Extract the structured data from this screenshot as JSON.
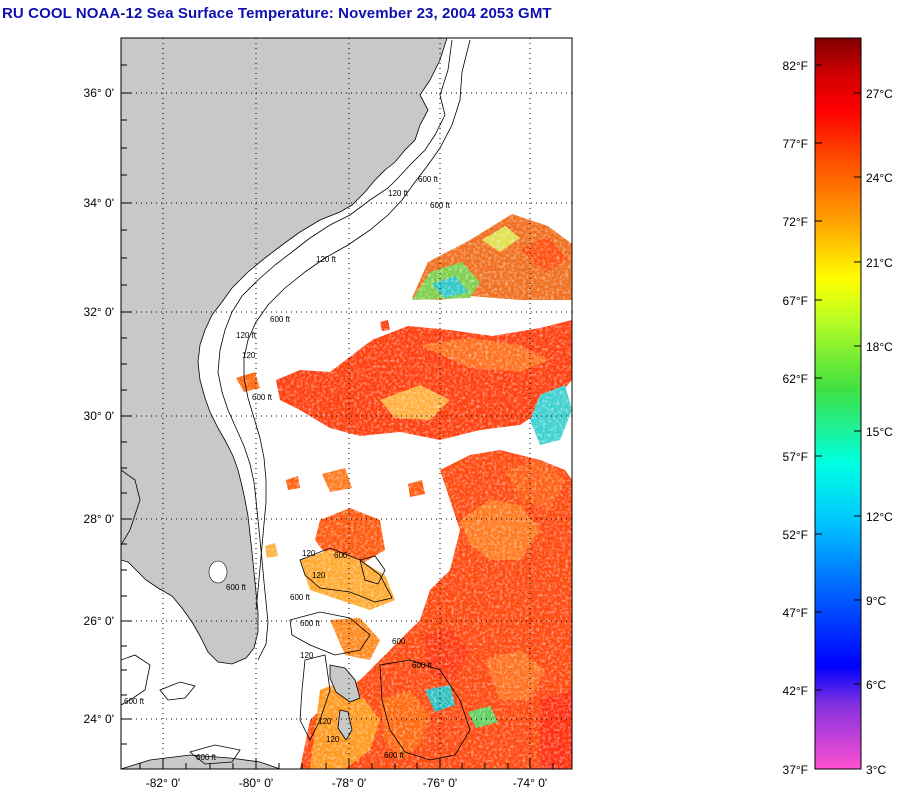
{
  "title": "RU COOL  NOAA-12  Sea Surface Temperature:  November 23, 2004 2053 GMT",
  "map": {
    "lat_labels": [
      "36° 0'",
      "34° 0'",
      "32° 0'",
      "30° 0'",
      "28° 0'",
      "26° 0'",
      "24° 0'"
    ],
    "lon_labels": [
      "-82° 0'",
      "-80° 0'",
      "-78° 0'",
      "-76° 0'",
      "-74° 0'"
    ],
    "contour_labels": [
      "120 ft",
      "600 ft",
      "120 ft",
      "600 ft",
      "120 ft",
      "600 ft",
      "600 ft",
      "120",
      "600",
      "120",
      "600 ft",
      "600",
      "600 ft",
      "600 ft",
      "120",
      "600 ft",
      "120",
      "600 ft",
      "120",
      "600 ft",
      "120",
      "600 ft"
    ]
  },
  "colorbar": {
    "fahrenheit": [
      "82°F",
      "77°F",
      "72°F",
      "67°F",
      "62°F",
      "57°F",
      "52°F",
      "47°F",
      "42°F",
      "37°F"
    ],
    "celsius": [
      "27°C",
      "24°C",
      "21°C",
      "18°C",
      "15°C",
      "12°C",
      "9°C",
      "6°C",
      "3°C"
    ],
    "range_f": [
      37,
      84
    ]
  }
}
